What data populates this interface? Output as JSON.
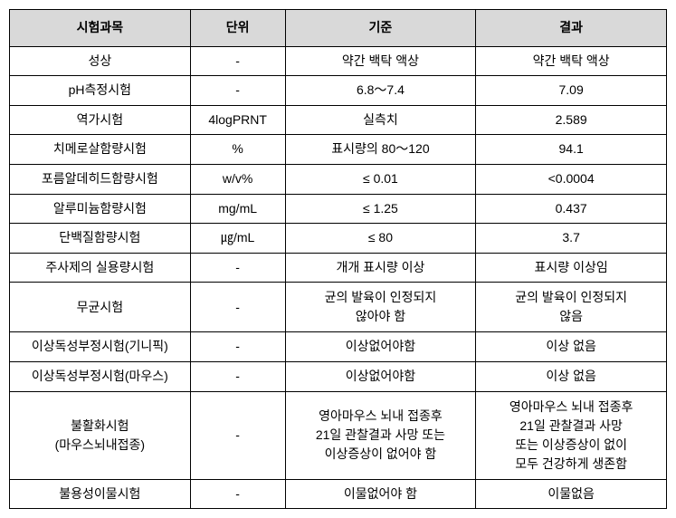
{
  "headers": {
    "subject": "시험과목",
    "unit": "단위",
    "criteria": "기준",
    "result": "결과"
  },
  "rows": [
    {
      "subject": "성상",
      "unit": "-",
      "criteria": "약간 백탁 액상",
      "result": "약간 백탁 액상"
    },
    {
      "subject": "pH측정시험",
      "unit": "-",
      "criteria": "6.8～7.4",
      "result": "7.09"
    },
    {
      "subject": "역가시험",
      "unit": "4logPRNT",
      "criteria": "실측치",
      "result": "2.589"
    },
    {
      "subject": "치메로살함량시험",
      "unit": "%",
      "criteria": "표시량의 80～120",
      "result": "94.1"
    },
    {
      "subject": "포름알데히드함량시험",
      "unit": "w/v%",
      "criteria": "≤ 0.01",
      "result": "<0.0004"
    },
    {
      "subject": "알루미늄함량시험",
      "unit": "mg/mL",
      "criteria": "≤ 1.25",
      "result": "0.437"
    },
    {
      "subject": "단백질함량시험",
      "unit": "㎍/mL",
      "criteria": "≤ 80",
      "result": "3.7"
    },
    {
      "subject": "주사제의 실용량시험",
      "unit": "-",
      "criteria": "개개 표시량 이상",
      "result": "표시량 이상임"
    },
    {
      "subject": "무균시험",
      "unit": "-",
      "criteria": "균의 발육이 인정되지\n않아야 함",
      "result": "균의 발육이 인정되지\n않음"
    },
    {
      "subject": "이상독성부정시험(기니픽)",
      "unit": "-",
      "criteria": "이상없어야함",
      "result": "이상 없음"
    },
    {
      "subject": "이상독성부정시험(마우스)",
      "unit": "-",
      "criteria": "이상없어야함",
      "result": "이상 없음"
    },
    {
      "subject": "불활화시험\n(마우스뇌내접종)",
      "unit": "-",
      "criteria": "영아마우스 뇌내 접종후\n21일 관찰결과 사망 또는\n이상증상이 없어야 함",
      "result": "영아마우스 뇌내 접종후\n21일 관찰결과 사망\n또는 이상증상이 없이\n모두 건강하게 생존함"
    },
    {
      "subject": "불용성이물시험",
      "unit": "-",
      "criteria": "이물없어야 함",
      "result": "이물없음"
    }
  ]
}
